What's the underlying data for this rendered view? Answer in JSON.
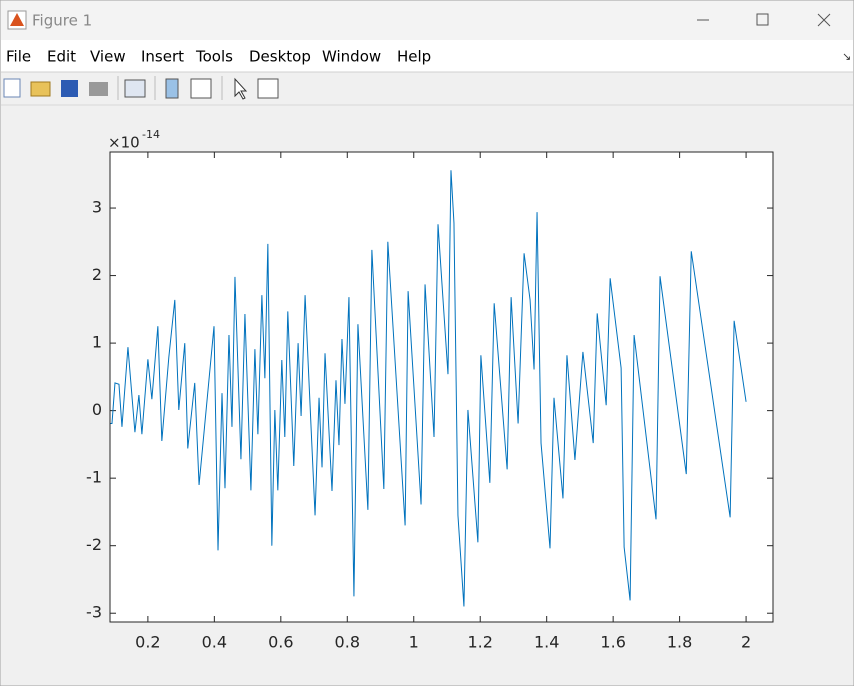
{
  "window": {
    "title": "Figure 1",
    "menu": [
      "File",
      "Edit",
      "View",
      "Insert",
      "Tools",
      "Desktop",
      "Window",
      "Help"
    ]
  },
  "chart_data": {
    "type": "line",
    "y_multiplier": "×10",
    "y_exponent": "-14",
    "x": [
      0.086,
      0.092,
      0.101,
      0.113,
      0.122,
      0.14,
      0.161,
      0.173,
      0.182,
      0.2,
      0.212,
      0.23,
      0.242,
      0.263,
      0.281,
      0.293,
      0.311,
      0.32,
      0.341,
      0.354,
      0.399,
      0.411,
      0.423,
      0.432,
      0.444,
      0.453,
      0.462,
      0.48,
      0.492,
      0.51,
      0.522,
      0.531,
      0.543,
      0.552,
      0.561,
      0.573,
      0.582,
      0.591,
      0.603,
      0.612,
      0.621,
      0.639,
      0.652,
      0.661,
      0.673,
      0.703,
      0.715,
      0.724,
      0.733,
      0.754,
      0.766,
      0.775,
      0.784,
      0.793,
      0.805,
      0.82,
      0.832,
      0.862,
      0.874,
      0.91,
      0.922,
      0.974,
      0.983,
      1.022,
      1.034,
      1.061,
      1.073,
      1.103,
      1.112,
      1.121,
      1.133,
      1.151,
      1.163,
      1.193,
      1.202,
      1.229,
      1.242,
      1.281,
      1.293,
      1.314,
      1.332,
      1.35,
      1.362,
      1.371,
      1.383,
      1.41,
      1.422,
      1.449,
      1.461,
      1.485,
      1.509,
      1.54,
      1.552,
      1.579,
      1.591,
      1.624,
      1.633,
      1.651,
      1.663,
      1.729,
      1.741,
      1.82,
      1.835,
      1.952,
      1.964,
      2.0
    ],
    "series": [
      {
        "color": "#0072bd",
        "values": [
          -0.19,
          -0.19,
          0.41,
          0.39,
          -0.24,
          0.94,
          -0.32,
          0.23,
          -0.35,
          0.76,
          0.17,
          1.25,
          -0.45,
          0.79,
          1.64,
          0.01,
          1.0,
          -0.56,
          0.41,
          -1.1,
          1.25,
          -2.07,
          0.26,
          -1.15,
          1.12,
          -0.24,
          1.98,
          -0.72,
          1.43,
          -1.18,
          0.91,
          -0.35,
          1.71,
          0.48,
          2.47,
          -2.0,
          0.01,
          -1.18,
          0.75,
          -0.39,
          1.47,
          -0.82,
          1.0,
          -0.08,
          1.71,
          -1.55,
          0.19,
          -0.84,
          0.85,
          -1.19,
          0.45,
          -0.51,
          1.06,
          0.1,
          1.68,
          -2.75,
          1.28,
          -1.47,
          2.38,
          -1.16,
          2.5,
          -1.7,
          1.77,
          -1.39,
          1.87,
          -0.39,
          2.76,
          0.54,
          3.56,
          2.78,
          -1.55,
          -2.9,
          0.01,
          -1.95,
          0.82,
          -1.07,
          1.59,
          -0.87,
          1.68,
          -0.19,
          2.33,
          1.64,
          0.61,
          2.94,
          -0.48,
          -2.04,
          0.19,
          -1.3,
          0.82,
          -0.73,
          0.87,
          -0.48,
          1.44,
          0.08,
          1.96,
          0.63,
          -2.02,
          -2.81,
          1.12,
          -1.61,
          1.99,
          -0.94,
          2.36,
          -1.58,
          1.33,
          0.13
        ]
      }
    ],
    "xlim": [
      0.086,
      2.081
    ],
    "ylim": [
      -3.13,
      3.83
    ],
    "xticks": [
      0.2,
      0.4,
      0.6,
      0.8,
      1,
      1.2,
      1.4,
      1.6,
      1.8,
      2
    ],
    "yticks": [
      -3,
      -2,
      -1,
      0,
      1,
      2,
      3
    ]
  }
}
